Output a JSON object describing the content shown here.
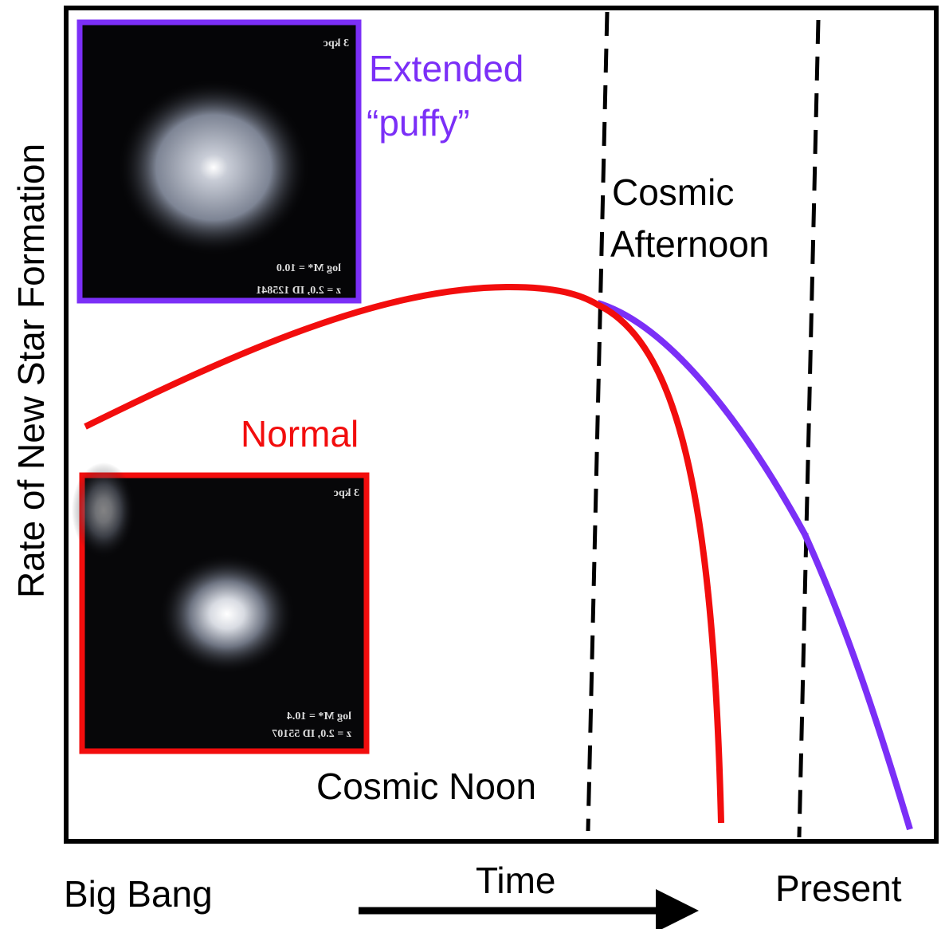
{
  "axes": {
    "y_label": "Rate of New Star Formation",
    "x_label": "Time",
    "x_start": "Big Bang",
    "x_end": "Present"
  },
  "eras": {
    "noon": "Cosmic Noon",
    "afternoon": [
      "Cosmic",
      "Afternoon"
    ]
  },
  "galaxies": [
    {
      "label": [
        "Extended",
        "“puffy”"
      ],
      "scale": "3 kpc",
      "mass": "log M* = 10.0",
      "id": "z = 2.0, ID 125841"
    },
    {
      "label": [
        "Normal"
      ],
      "scale": "3 kpc",
      "mass": "log M* = 10.4",
      "id": "z = 2.0, ID 55107"
    }
  ]
}
